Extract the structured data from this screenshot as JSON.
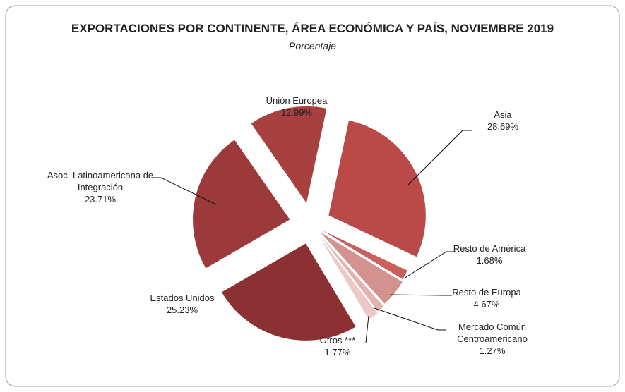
{
  "chart_data": {
    "type": "pie",
    "title": "EXPORTACIONES POR CONTINENTE, ÁREA ECONÓMICA Y PAÍS, NOVIEMBRE 2019",
    "subtitle": "Porcentaje",
    "categories": [
      "Asia",
      "Resto de América",
      "Resto de Europa",
      "Mercado Común Centroamericano",
      "Otros ***",
      "Estados Unidos",
      "Asoc. Latinoamericana de Integración",
      "Unión Europea"
    ],
    "values": [
      28.69,
      1.68,
      4.67,
      1.27,
      1.77,
      25.23,
      23.71,
      12.99
    ],
    "value_labels": [
      "28.69%",
      "1.68%",
      "4.67%",
      "1.27%",
      "1.77%",
      "25.23%",
      "23.71%",
      "12.99%"
    ],
    "colors": [
      "#b94a48",
      "#c9605e",
      "#d4928f",
      "#e2b3b1",
      "#ecc9c7",
      "#8b3133",
      "#9c3a3b",
      "#a8403f"
    ]
  }
}
